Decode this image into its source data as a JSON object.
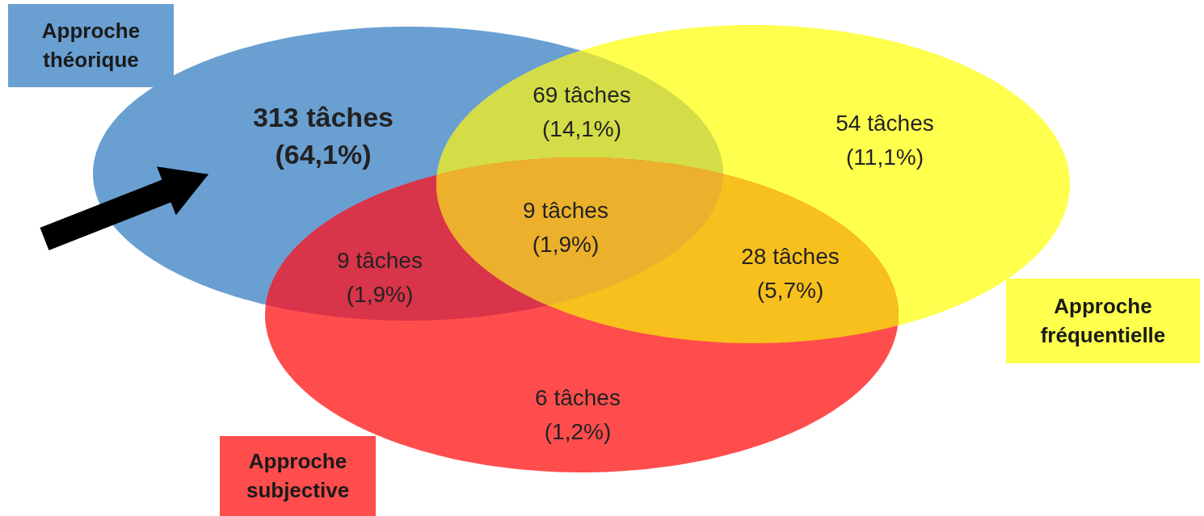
{
  "chart_data": {
    "type": "other",
    "categories": [
      null,
      null,
      null,
      null,
      null,
      null,
      null
    ],
    "colors": [
      "#6a9fd2",
      "#d4dc48",
      "#ffff4d",
      "#ecb02c",
      "#d8344a",
      "#f8c01c",
      "#ff4d4d"
    ],
    "values": [
      313,
      69,
      54,
      9,
      9,
      28,
      6
    ],
    "value_labels": [
      "313 tâches\n(64,1%)",
      "69 tâches\n(14,1%)",
      "54 tâches\n(11,1%)",
      "9 tâches\n(1,9%)",
      "9 tâches\n(1,9%)",
      "28 tâches\n(5,7%)",
      "6 tâches\n(1,2%)"
    ],
    "annotations": [
      "Approche théorique",
      "Approche fréquentielle",
      "Approche subjective"
    ]
  }
}
